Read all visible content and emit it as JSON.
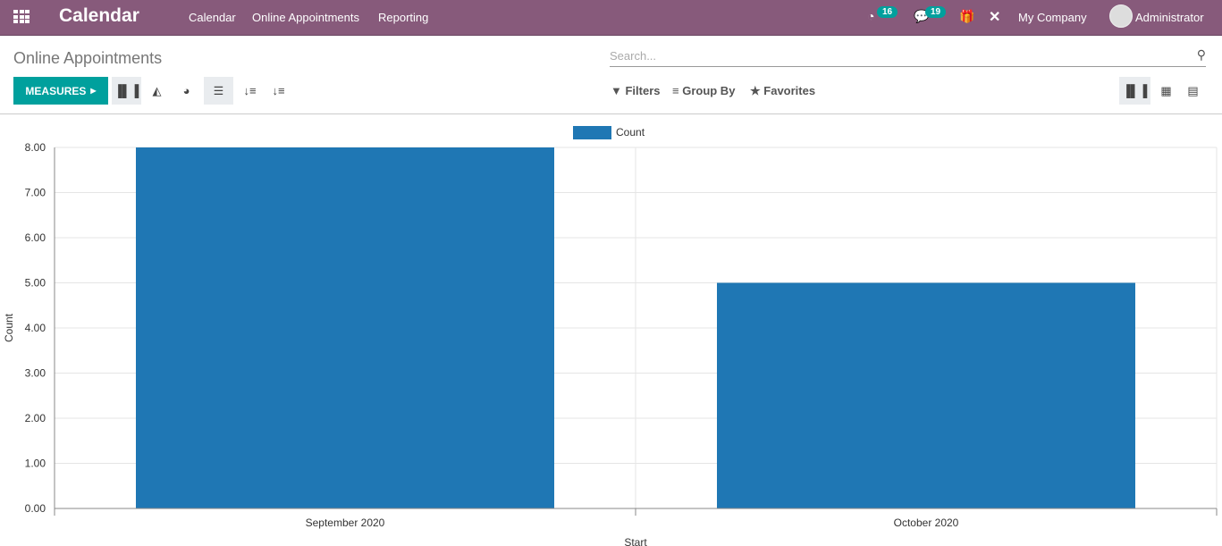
{
  "navbar": {
    "app_title": "Calendar",
    "menus": [
      "Calendar",
      "Online Appointments",
      "Reporting"
    ],
    "activity_count": "16",
    "message_count": "19",
    "company": "My Company",
    "user": "Administrator",
    "color": "#875a7b"
  },
  "control_panel": {
    "title": "Online Appointments",
    "measures_label": "MEASURES",
    "search_placeholder": "Search...",
    "filters": "Filters",
    "group_by": "Group By",
    "favorites": "Favorites",
    "active_chart": "bar",
    "active_view": "graph",
    "accent": "#00a09d"
  },
  "chart_data": {
    "type": "bar",
    "categories": [
      "September 2020",
      "October 2020"
    ],
    "series": [
      {
        "name": "Count",
        "values": [
          8,
          5
        ],
        "color": "#1f77b4"
      }
    ],
    "xlabel": "Start",
    "ylabel": "Count",
    "ylim": [
      0,
      8
    ],
    "yticks": [
      "0.00",
      "1.00",
      "2.00",
      "3.00",
      "4.00",
      "5.00",
      "6.00",
      "7.00",
      "8.00"
    ],
    "grid": true,
    "legend": "top-center"
  }
}
